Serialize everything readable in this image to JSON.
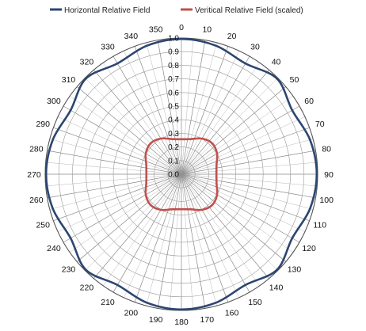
{
  "chart_data": {
    "type": "polar",
    "title": "",
    "legend": {
      "placement": "top"
    },
    "angle_unit": "degrees",
    "direction": "clockwise",
    "zero_location": "top",
    "angle_ticks": [
      "0",
      "10",
      "20",
      "30",
      "40",
      "50",
      "60",
      "70",
      "80",
      "90",
      "100",
      "110",
      "120",
      "130",
      "140",
      "150",
      "160",
      "170",
      "180",
      "190",
      "200",
      "210",
      "220",
      "230",
      "240",
      "250",
      "260",
      "270",
      "280",
      "290",
      "300",
      "310",
      "320",
      "330",
      "340",
      "350"
    ],
    "radial_ticks": [
      "0.0",
      "0.1",
      "0.2",
      "0.3",
      "0.4",
      "0.5",
      "0.6",
      "0.7",
      "0.8",
      "0.9",
      "1.0"
    ],
    "rlim": [
      0,
      1
    ],
    "grid": true,
    "minor_angle_step": 5,
    "series": [
      {
        "name": "Horizontal Relative Field",
        "color": "#2c4670",
        "theta": [
          0,
          15,
          30,
          45,
          60,
          75,
          90,
          105,
          120,
          135,
          150,
          165,
          180,
          195,
          210,
          225,
          240,
          255,
          270,
          285,
          300,
          315,
          330,
          345
        ],
        "r": [
          0.993,
          0.977,
          0.939,
          0.992,
          0.939,
          0.977,
          0.993,
          0.977,
          0.939,
          0.992,
          0.939,
          0.977,
          0.993,
          0.977,
          0.939,
          0.992,
          0.939,
          0.977,
          0.993,
          0.977,
          0.939,
          0.992,
          0.939,
          0.977
        ]
      },
      {
        "name": "Veritical Relative Field (scaled)",
        "color": "#c0504d",
        "theta": [
          0,
          15,
          30,
          45,
          60,
          75,
          90,
          105,
          120,
          135,
          150,
          165,
          180,
          195,
          210,
          225,
          240,
          255,
          270,
          285,
          300,
          315,
          330,
          345
        ],
        "r": [
          0.257,
          0.267,
          0.302,
          0.32,
          0.302,
          0.267,
          0.257,
          0.267,
          0.302,
          0.32,
          0.302,
          0.267,
          0.257,
          0.267,
          0.302,
          0.32,
          0.302,
          0.267,
          0.257,
          0.267,
          0.302,
          0.32,
          0.302,
          0.267
        ]
      }
    ]
  }
}
